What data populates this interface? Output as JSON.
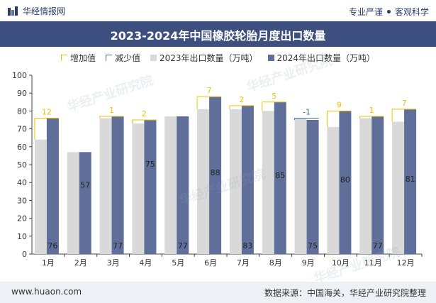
{
  "header": {
    "brand": "华经情报网",
    "slogan_a": "专业严谨",
    "slogan_b": "客观科学"
  },
  "colors": {
    "title_bg": "#3d4f7e",
    "series_2023": "#d9d9d9",
    "series_2024": "#5f6f9a",
    "increase": "#f2c200",
    "decrease": "#3a6f8f"
  },
  "legend": {
    "increase": "增加值",
    "decrease": "减少值",
    "s2023": "2023年出口数量（万吨）",
    "s2024": "2024年出口数量（万吨）"
  },
  "chart_data": {
    "type": "bar",
    "title": "2023-2024年中国橡胶轮胎月度出口数量",
    "categories": [
      "1月",
      "2月",
      "3月",
      "4月",
      "5月",
      "6月",
      "7月",
      "8月",
      "9月",
      "10月",
      "11月",
      "12月"
    ],
    "series": [
      {
        "name": "2023年出口数量（万吨）",
        "values": [
          64,
          57,
          76,
          73,
          77,
          81,
          81,
          80,
          76,
          71,
          76,
          74
        ]
      },
      {
        "name": "2024年出口数量（万吨）",
        "values": [
          76,
          57,
          77,
          75,
          77,
          88,
          83,
          85,
          75,
          80,
          77,
          81
        ]
      }
    ],
    "data_labels_2024": [
      "76",
      "57",
      "77",
      "75",
      "77",
      "88",
      "83",
      "85",
      "75",
      "80",
      "77",
      "81"
    ],
    "change": [
      12,
      null,
      1,
      2,
      null,
      7,
      2,
      5,
      -1,
      9,
      1,
      7
    ],
    "change_labels": [
      "12",
      "",
      "1",
      "2",
      "",
      "7",
      "2",
      "5",
      "-1",
      "9",
      "1",
      "7"
    ],
    "ylim": [
      0,
      100
    ],
    "yticks": [
      "0",
      "10",
      "20",
      "30",
      "40",
      "50",
      "60",
      "70",
      "80",
      "90",
      "100"
    ],
    "grid": false,
    "legend_position": "top"
  },
  "watermarks": [
    "华经产业研究院",
    "华经产业研究院",
    "华经产业研究院",
    "华经产业研究院"
  ],
  "footer": {
    "url": "www.huaon.com",
    "source": "数据来源：中国海关，华经产业研究院整理"
  }
}
